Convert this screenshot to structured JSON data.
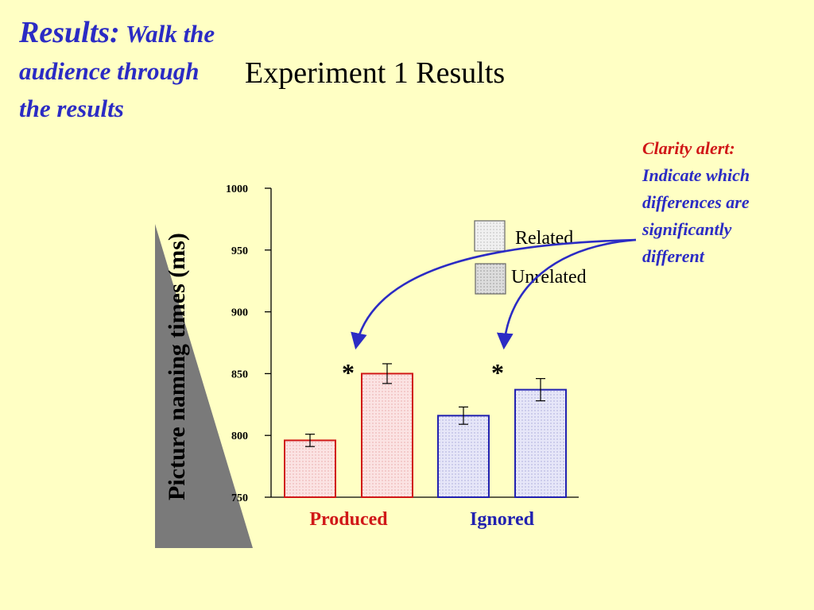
{
  "slide": {
    "title": "Experiment 1 Results",
    "callout_left": {
      "heading": "Results:",
      "body": "Walk the audience through the results"
    },
    "callout_right": {
      "alert": "Clarity alert:",
      "body": "Indicate which differences are significantly different"
    },
    "significance_marker": "*"
  },
  "colors": {
    "background": "#ffffc4",
    "callout_blue": "#2b2bc4",
    "alert_red": "#d01818",
    "produced_red": "#d01818",
    "ignored_blue": "#2222b0",
    "triangle_gray": "#7a7a7a"
  },
  "chart_data": {
    "type": "bar",
    "categories": [
      "Produced",
      "Ignored"
    ],
    "series": [
      {
        "name": "Related",
        "values": [
          796,
          816
        ],
        "error": [
          5,
          7
        ]
      },
      {
        "name": "Unrelated",
        "values": [
          850,
          837
        ],
        "error": [
          8,
          9
        ]
      }
    ],
    "ylabel": "Picture naming times (ms)",
    "xlabel": "",
    "ylim": [
      750,
      1000
    ],
    "yticks": [
      1000,
      950,
      900,
      850,
      800,
      750
    ],
    "legend": [
      "Related",
      "Unrelated"
    ],
    "legend_position": "top-right",
    "significant": [
      "Produced",
      "Ignored"
    ],
    "category_colors": [
      "#d01818",
      "#2222b0"
    ]
  }
}
